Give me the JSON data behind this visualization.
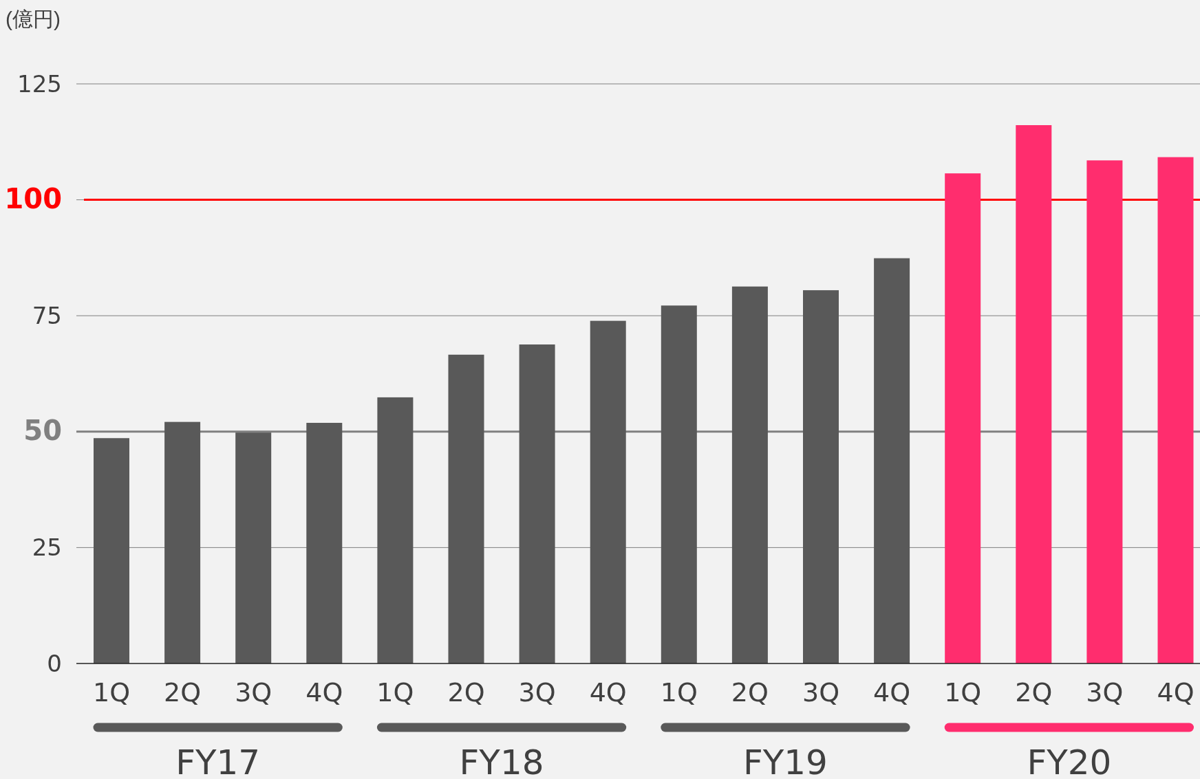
{
  "chart_data": {
    "type": "bar",
    "ylabel": "(億円)",
    "categories": [
      "1Q",
      "2Q",
      "3Q",
      "4Q",
      "1Q",
      "2Q",
      "3Q",
      "4Q",
      "1Q",
      "2Q",
      "3Q",
      "4Q",
      "1Q",
      "2Q",
      "3Q",
      "4Q"
    ],
    "values": [
      48.6,
      52.1,
      49.8,
      51.9,
      57.4,
      66.6,
      68.8,
      73.9,
      77.2,
      81.3,
      80.5,
      87.4,
      105.7,
      116.1,
      108.5,
      109.2
    ],
    "colors": [
      "#595959",
      "#595959",
      "#595959",
      "#595959",
      "#595959",
      "#595959",
      "#595959",
      "#595959",
      "#595959",
      "#595959",
      "#595959",
      "#595959",
      "#ff2d6e",
      "#ff2d6e",
      "#ff2d6e",
      "#ff2d6e"
    ],
    "annotations": [
      "FY17",
      "FY18",
      "FY19",
      "FY20"
    ],
    "ylim": [
      0,
      125
    ],
    "yticks": [
      0,
      25,
      50,
      75,
      100,
      125
    ],
    "grid": "y",
    "ref_lines": [
      {
        "axis": "y",
        "value": 100,
        "color": "#ff0000"
      },
      {
        "axis": "y",
        "value": 50,
        "color": "#808080"
      }
    ]
  }
}
